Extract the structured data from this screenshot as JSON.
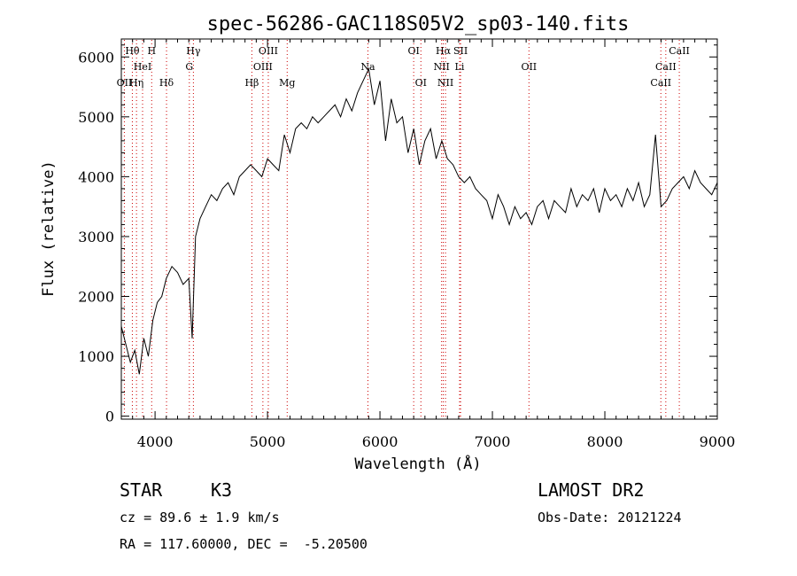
{
  "chart_data": {
    "type": "line",
    "title": "spec-56286-GAC118S05V2_sp03-140.fits",
    "xlabel": "Wavelength (Å)",
    "ylabel": "Flux (relative)",
    "xlim": [
      3700,
      9000
    ],
    "ylim": [
      -50,
      6300
    ],
    "x_ticks": [
      4000,
      5000,
      6000,
      7000,
      8000,
      9000
    ],
    "y_ticks": [
      0,
      1000,
      2000,
      3000,
      4000,
      5000,
      6000
    ],
    "series": [
      {
        "x": [
          3700,
          3740,
          3780,
          3820,
          3860,
          3900,
          3940,
          3980,
          4020,
          4060,
          4100,
          4150,
          4200,
          4250,
          4300,
          4330,
          4360,
          4400,
          4450,
          4500,
          4550,
          4600,
          4650,
          4700,
          4750,
          4800,
          4850,
          4900,
          4950,
          5000,
          5050,
          5100,
          5150,
          5200,
          5250,
          5300,
          5350,
          5400,
          5450,
          5500,
          5550,
          5600,
          5650,
          5700,
          5750,
          5800,
          5850,
          5900,
          5950,
          6000,
          6050,
          6100,
          6150,
          6200,
          6250,
          6300,
          6350,
          6400,
          6450,
          6500,
          6550,
          6600,
          6650,
          6700,
          6750,
          6800,
          6850,
          6900,
          6950,
          7000,
          7050,
          7100,
          7150,
          7200,
          7250,
          7300,
          7350,
          7400,
          7450,
          7500,
          7550,
          7600,
          7650,
          7700,
          7750,
          7800,
          7850,
          7900,
          7950,
          8000,
          8050,
          8100,
          8150,
          8200,
          8250,
          8300,
          8350,
          8400,
          8450,
          8500,
          8550,
          8600,
          8650,
          8700,
          8750,
          8800,
          8850,
          8900,
          8950,
          9000
        ],
        "y": [
          1500,
          1200,
          900,
          1100,
          700,
          1300,
          1000,
          1600,
          1900,
          2000,
          2300,
          2500,
          2400,
          2200,
          2300,
          1300,
          3000,
          3300,
          3500,
          3700,
          3600,
          3800,
          3900,
          3700,
          4000,
          4100,
          4200,
          4100,
          4000,
          4300,
          4200,
          4100,
          4700,
          4400,
          4800,
          4900,
          4800,
          5000,
          4900,
          5000,
          5100,
          5200,
          5000,
          5300,
          5100,
          5400,
          5600,
          5800,
          5200,
          5600,
          4600,
          5300,
          4900,
          5000,
          4400,
          4800,
          4200,
          4600,
          4800,
          4300,
          4600,
          4300,
          4200,
          4000,
          3900,
          4000,
          3800,
          3700,
          3600,
          3300,
          3700,
          3500,
          3200,
          3500,
          3300,
          3400,
          3200,
          3500,
          3600,
          3300,
          3600,
          3500,
          3400,
          3800,
          3500,
          3700,
          3600,
          3800,
          3400,
          3800,
          3600,
          3700,
          3500,
          3800,
          3600,
          3900,
          3500,
          3700,
          4700,
          3500,
          3600,
          3800,
          3900,
          4000,
          3800,
          4100,
          3900,
          3800,
          3700,
          3900
        ]
      }
    ],
    "spectral_lines": [
      {
        "label": "Hθ",
        "x": 3798,
        "row": 0
      },
      {
        "label": "H",
        "x": 3970,
        "row": 0
      },
      {
        "label": "Hγ",
        "x": 4341,
        "row": 0
      },
      {
        "label": "OIII",
        "x": 5007,
        "row": 0
      },
      {
        "label": "OI",
        "x": 6300,
        "row": 0
      },
      {
        "label": "Hα",
        "x": 6563,
        "row": 0
      },
      {
        "label": "SII",
        "x": 6717,
        "row": 0
      },
      {
        "label": "CaII",
        "x": 8662,
        "row": 0
      },
      {
        "label": "HeI",
        "x": 3889,
        "row": 1
      },
      {
        "label": "G",
        "x": 4305,
        "row": 1
      },
      {
        "label": "OIII",
        "x": 4959,
        "row": 1
      },
      {
        "label": "Na",
        "x": 5893,
        "row": 1
      },
      {
        "label": "NII",
        "x": 6548,
        "row": 1
      },
      {
        "label": "Li",
        "x": 6708,
        "row": 1
      },
      {
        "label": "OII",
        "x": 7325,
        "row": 1
      },
      {
        "label": "CaII",
        "x": 8542,
        "row": 1
      },
      {
        "label": "OII",
        "x": 3727,
        "row": 2
      },
      {
        "label": "Hη",
        "x": 3835,
        "row": 2
      },
      {
        "label": "Hδ",
        "x": 4102,
        "row": 2
      },
      {
        "label": "Hβ",
        "x": 4861,
        "row": 2
      },
      {
        "label": "Mg",
        "x": 5175,
        "row": 2
      },
      {
        "label": "OI",
        "x": 6364,
        "row": 2
      },
      {
        "label": "NII",
        "x": 6583,
        "row": 2
      },
      {
        "label": "CaII",
        "x": 8498,
        "row": 2
      }
    ],
    "spectral_line_color": "#cc0000",
    "grid": false,
    "legend": "none"
  },
  "info": {
    "object_class": "STAR",
    "subclass": "K3",
    "survey": "LAMOST DR2",
    "redshift": "cz = 89.6 ± 1.9 km/s",
    "obs_date": "Obs-Date: 20121224",
    "coords": "RA = 117.60000, DEC =  -5.20500"
  }
}
